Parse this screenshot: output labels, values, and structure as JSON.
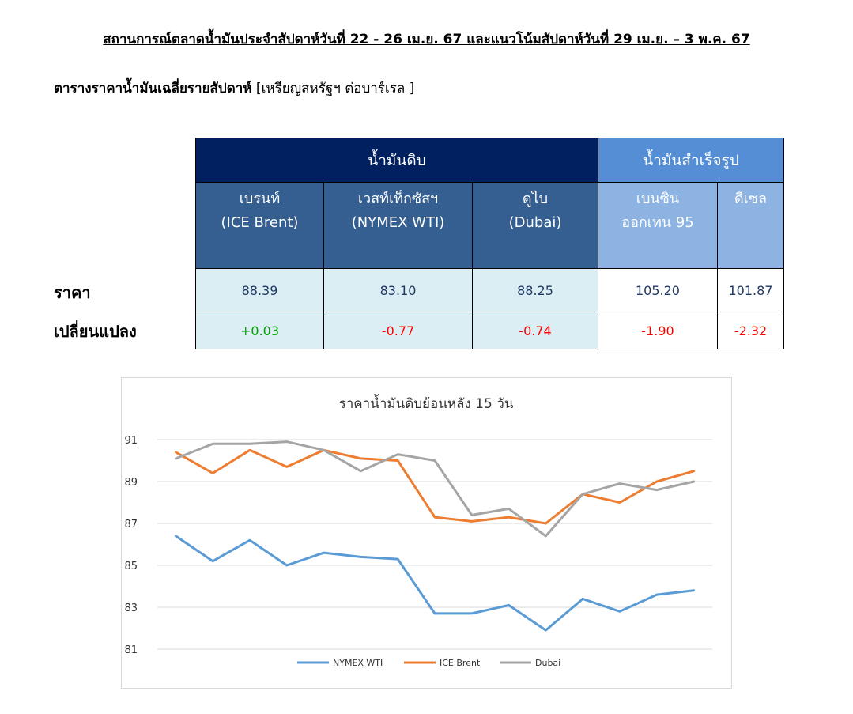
{
  "header": {
    "title": "สถานการณ์ตลาดน้ำมันประจำสัปดาห์วันที่ 22 - 26 เม.ย. 67 และแนวโน้มสัปดาห์วันที่ 29 เม.ย. – 3 พ.ค. 67",
    "subtitle_bold": "ตารางราคาน้ำมันเฉลี่ยรายสัปดาห์",
    "subtitle_unit": " [เหรียญสหรัฐฯ ต่อบาร์เรล ]"
  },
  "table": {
    "group_crude": "น้ำมันดิบ",
    "group_finished": "น้ำมันสำเร็จรูป",
    "columns": [
      {
        "name": "เบรนท์",
        "sub": "(ICE Brent)"
      },
      {
        "name": "เวสท์เท็กซัสฯ",
        "sub": "(NYMEX WTI)"
      },
      {
        "name": "ดูไบ",
        "sub": "(Dubai)"
      },
      {
        "name": "เบนซิน",
        "sub": "ออกเทน  95"
      },
      {
        "name": "ดีเซล",
        "sub": ""
      }
    ],
    "row_price_label": "ราคา",
    "row_change_label": "เปลี่ยนแปลง",
    "prices": [
      "88.39",
      "83.10",
      "88.25",
      "105.20",
      "101.87"
    ],
    "changes": [
      "+0.03",
      "-0.77",
      "-0.74",
      "-1.90",
      "-2.32"
    ]
  },
  "colors": {
    "nymex": "#5b9bd5",
    "brent": "#ed7d31",
    "dubai": "#a5a5a5",
    "positive": "#00a000",
    "negative": "#ff0000"
  },
  "chart_data": {
    "type": "line",
    "title": "ราคาน้ำมันดิบย้อนหลัง 15 วัน",
    "xlabel": "",
    "ylabel": "",
    "ylim": [
      81,
      91
    ],
    "yticks": [
      81,
      83,
      85,
      87,
      89,
      91
    ],
    "grid": true,
    "legend_position": "bottom",
    "x": [
      1,
      2,
      3,
      4,
      5,
      6,
      7,
      8,
      9,
      10,
      11,
      12,
      13,
      14,
      15
    ],
    "series": [
      {
        "name": "NYMEX WTI",
        "color": "#5b9bd5",
        "values": [
          86.4,
          85.2,
          86.2,
          85.0,
          85.6,
          85.4,
          85.3,
          82.7,
          82.7,
          83.1,
          81.9,
          83.4,
          82.8,
          83.6,
          83.8
        ]
      },
      {
        "name": "ICE Brent",
        "color": "#ed7d31",
        "values": [
          90.4,
          89.4,
          90.5,
          89.7,
          90.5,
          90.1,
          90.0,
          87.3,
          87.1,
          87.3,
          87.0,
          88.4,
          88.0,
          89.0,
          89.5
        ]
      },
      {
        "name": "Dubai",
        "color": "#a5a5a5",
        "values": [
          90.1,
          90.8,
          90.8,
          90.9,
          90.5,
          89.5,
          90.3,
          90.0,
          87.4,
          87.7,
          86.4,
          88.4,
          88.9,
          88.6,
          89.0
        ]
      }
    ]
  }
}
